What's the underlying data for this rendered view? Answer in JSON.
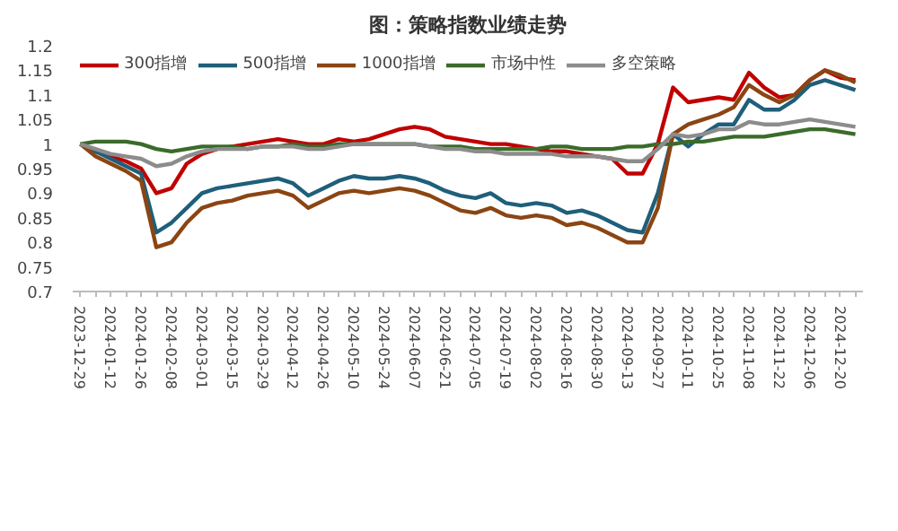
{
  "chart_data": {
    "type": "line",
    "title": "图：策略指数业绩走势",
    "categories": [
      "2023-12-29",
      null,
      "2024-01-12",
      null,
      "2024-01-26",
      null,
      "2024-02-08",
      null,
      "2024-03-01",
      null,
      "2024-03-15",
      null,
      "2024-03-29",
      null,
      "2024-04-12",
      null,
      "2024-04-26",
      null,
      "2024-05-10",
      null,
      "2024-05-24",
      null,
      "2024-06-07",
      null,
      "2024-06-21",
      null,
      "2024-07-05",
      null,
      "2024-07-19",
      null,
      "2024-08-02",
      null,
      "2024-08-16",
      null,
      "2024-08-30",
      null,
      "2024-09-13",
      null,
      "2024-09-27",
      null,
      "2024-10-11",
      null,
      "2024-10-25",
      null,
      "2024-11-08",
      null,
      "2024-11-22",
      null,
      "2024-12-06",
      null,
      "2024-12-20",
      null
    ],
    "ylim": [
      0.7,
      1.2
    ],
    "yticks": [
      0.7,
      0.75,
      0.8,
      0.85,
      0.9,
      0.95,
      1,
      1.05,
      1.1,
      1.15,
      1.2
    ],
    "grid": false,
    "legend": "top",
    "series": [
      {
        "name": "300指增",
        "color": "#c00000",
        "values": [
          1.0,
          0.985,
          0.975,
          0.965,
          0.95,
          0.9,
          0.91,
          0.96,
          0.98,
          0.99,
          0.995,
          1.0,
          1.005,
          1.01,
          1.005,
          1.0,
          1.0,
          1.01,
          1.005,
          1.01,
          1.02,
          1.03,
          1.035,
          1.03,
          1.015,
          1.01,
          1.005,
          1.0,
          1.0,
          0.995,
          0.99,
          0.985,
          0.985,
          0.98,
          0.975,
          0.97,
          0.94,
          0.94,
          1.0,
          1.115,
          1.085,
          1.09,
          1.095,
          1.09,
          1.145,
          1.115,
          1.095,
          1.1,
          1.13,
          1.15,
          1.135,
          1.13
        ]
      },
      {
        "name": "500指增",
        "color": "#1f5f7a",
        "values": [
          1.0,
          0.985,
          0.97,
          0.955,
          0.94,
          0.82,
          0.84,
          0.87,
          0.9,
          0.91,
          0.915,
          0.92,
          0.925,
          0.93,
          0.92,
          0.895,
          0.91,
          0.925,
          0.935,
          0.93,
          0.93,
          0.935,
          0.93,
          0.92,
          0.905,
          0.895,
          0.89,
          0.9,
          0.88,
          0.875,
          0.88,
          0.875,
          0.86,
          0.865,
          0.855,
          0.84,
          0.825,
          0.82,
          0.9,
          1.02,
          0.995,
          1.02,
          1.04,
          1.04,
          1.09,
          1.07,
          1.07,
          1.09,
          1.12,
          1.13,
          1.12,
          1.11
        ]
      },
      {
        "name": "1000指增",
        "color": "#8b4513",
        "values": [
          1.0,
          0.975,
          0.96,
          0.945,
          0.925,
          0.79,
          0.8,
          0.84,
          0.87,
          0.88,
          0.885,
          0.895,
          0.9,
          0.905,
          0.895,
          0.87,
          0.885,
          0.9,
          0.905,
          0.9,
          0.905,
          0.91,
          0.905,
          0.895,
          0.88,
          0.865,
          0.86,
          0.87,
          0.855,
          0.85,
          0.855,
          0.85,
          0.835,
          0.84,
          0.83,
          0.815,
          0.8,
          0.8,
          0.87,
          1.02,
          1.04,
          1.05,
          1.06,
          1.075,
          1.12,
          1.1,
          1.085,
          1.1,
          1.13,
          1.15,
          1.14,
          1.125
        ]
      },
      {
        "name": "市场中性",
        "color": "#3a6b2a",
        "values": [
          1.0,
          1.005,
          1.005,
          1.005,
          1.0,
          0.99,
          0.985,
          0.99,
          0.995,
          0.995,
          0.995,
          0.99,
          0.995,
          0.995,
          1.0,
          0.995,
          0.995,
          1.0,
          1.0,
          1.0,
          1.0,
          1.0,
          1.0,
          0.995,
          0.995,
          0.995,
          0.99,
          0.99,
          0.99,
          0.99,
          0.99,
          0.995,
          0.995,
          0.99,
          0.99,
          0.99,
          0.995,
          0.995,
          1.0,
          1.0,
          1.005,
          1.005,
          1.01,
          1.015,
          1.015,
          1.015,
          1.02,
          1.025,
          1.03,
          1.03,
          1.025,
          1.02
        ]
      },
      {
        "name": "多空策略",
        "color": "#8c8c8c",
        "values": [
          1.0,
          0.99,
          0.98,
          0.975,
          0.97,
          0.955,
          0.96,
          0.975,
          0.985,
          0.99,
          0.99,
          0.99,
          0.995,
          0.995,
          0.995,
          0.99,
          0.99,
          0.995,
          1.0,
          1.0,
          1.0,
          1.0,
          1.0,
          0.995,
          0.99,
          0.99,
          0.985,
          0.985,
          0.98,
          0.98,
          0.98,
          0.98,
          0.975,
          0.975,
          0.975,
          0.97,
          0.965,
          0.965,
          0.99,
          1.02,
          1.015,
          1.02,
          1.03,
          1.03,
          1.045,
          1.04,
          1.04,
          1.045,
          1.05,
          1.045,
          1.04,
          1.035
        ]
      }
    ]
  }
}
